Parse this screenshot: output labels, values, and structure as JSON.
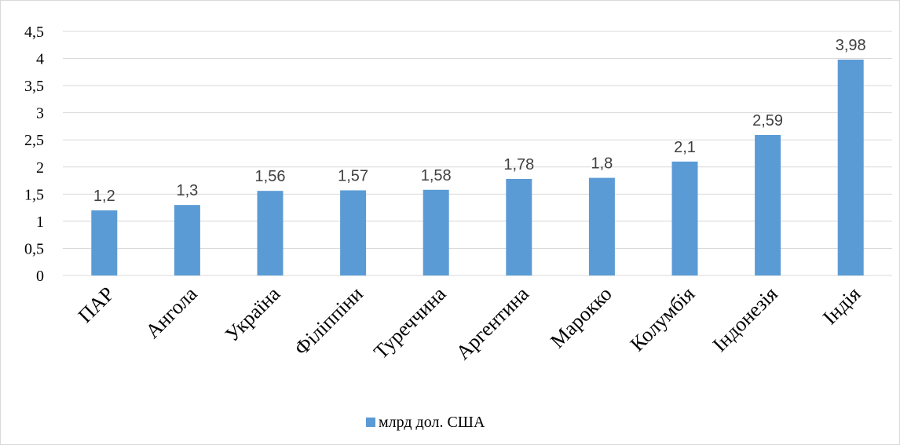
{
  "chart_data": {
    "type": "bar",
    "categories": [
      "ПАР",
      "Ангола",
      "Україна",
      "Філіппіни",
      "Туреччина",
      "Аргентина",
      "Марокко",
      "Колумбія",
      "Індонезія",
      "Індія"
    ],
    "series": [
      {
        "name": "млрд дол. США",
        "values": [
          1.2,
          1.3,
          1.56,
          1.57,
          1.58,
          1.78,
          1.8,
          2.1,
          2.59,
          3.98
        ],
        "data_labels": [
          "1,2",
          "1,3",
          "1,56",
          "1,57",
          "1,58",
          "1,78",
          "1,8",
          "2,1",
          "2,59",
          "3,98"
        ],
        "color": "#5B9BD5"
      }
    ],
    "y_ticks": [
      "0",
      "0,5",
      "1",
      "1,5",
      "2",
      "2,5",
      "3",
      "3,5",
      "4",
      "4,5"
    ],
    "ylim": [
      0,
      4.5
    ],
    "grid": true,
    "legend_position": "bottom"
  },
  "colors": {
    "bar": "#5B9BD5",
    "grid": "#d9d9d9",
    "border": "#d9d9d9"
  }
}
